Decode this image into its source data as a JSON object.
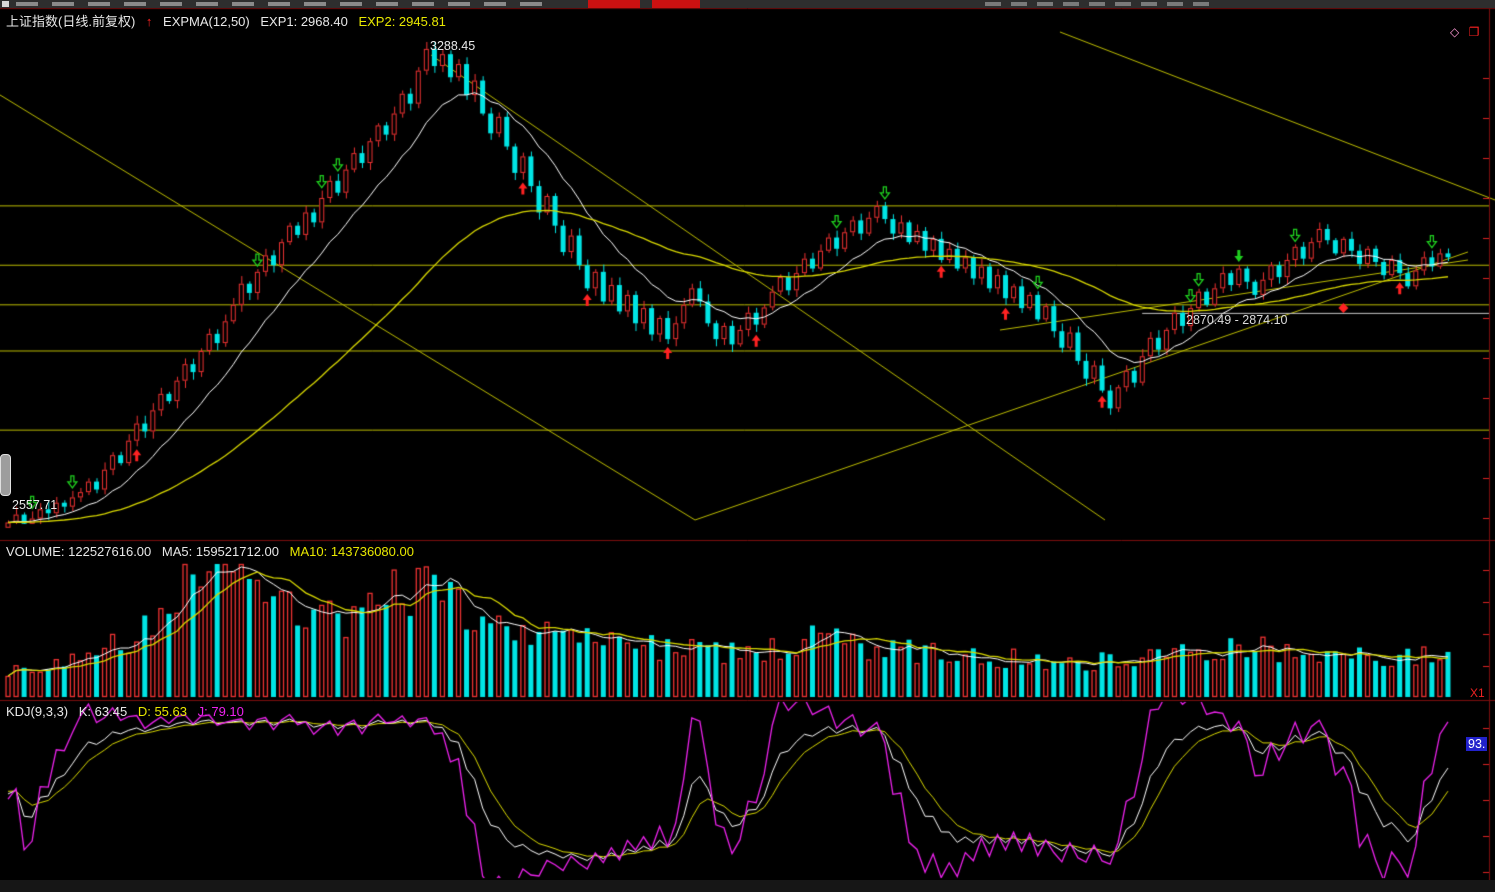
{
  "header": {
    "title": "上证指数(日线.前复权)",
    "indicator_arrow": "↑",
    "indicator": "EXPMA(12,50)",
    "exp1": "EXP1: 2968.40",
    "exp2": "EXP2: 2945.81",
    "corner_diamond": "◇",
    "corner_squares": "❐"
  },
  "labels": {
    "peak": "3288.45",
    "low": "2557.71",
    "range": "2870.49 - 2874.10"
  },
  "volume_panel": {
    "volume": "VOLUME: 122527616.00",
    "ma5": "MA5: 159521712.00",
    "ma10": "MA10: 143736080.00",
    "right_label": "X1"
  },
  "kdj_panel": {
    "title": "KDJ(9,3,3)",
    "k": "K: 63.45",
    "d": "D: 55.63",
    "j": "J: 79.10",
    "axis_badge": "93."
  },
  "colors": {
    "background": "#000000",
    "up": "#ee3232",
    "down": "#00e5e5",
    "ma_fast": "#ffffff",
    "ma_slow": "#d8d800",
    "trend": "#bdbd00",
    "border": "#7d0e0e",
    "tick": "#dd2222",
    "gray_line": "#c8c8c8",
    "arrow_buy": "#ff2222",
    "arrow_sell": "#1fcf1f",
    "badge_bg": "#2222cc",
    "panel_text": "#e8e8e8",
    "yellow_text": "#e8e800",
    "magenta_text": "#ee22ee"
  },
  "chart_data": [
    {
      "type": "candlestick",
      "symbol": "上证指数",
      "period": "日线.前复权",
      "indicator": "EXPMA",
      "ema_periods": [
        12,
        50
      ],
      "exp1": 2968.4,
      "exp2": 2945.81,
      "price_high": 3288.45,
      "price_low": 2557.71,
      "closes": [
        2560,
        2572,
        2558,
        2566,
        2580,
        2574,
        2590,
        2584,
        2598,
        2606,
        2622,
        2610,
        2640,
        2662,
        2650,
        2684,
        2710,
        2698,
        2730,
        2755,
        2744,
        2775,
        2800,
        2788,
        2820,
        2846,
        2832,
        2865,
        2890,
        2922,
        2908,
        2940,
        2965,
        2950,
        2985,
        3010,
        2996,
        3030,
        3015,
        3052,
        3078,
        3060,
        3095,
        3120,
        3105,
        3138,
        3162,
        3148,
        3180,
        3210,
        3195,
        3245,
        3278,
        3252,
        3270,
        3235,
        3255,
        3208,
        3230,
        3180,
        3150,
        3175,
        3130,
        3090,
        3115,
        3070,
        3030,
        3055,
        3010,
        2970,
        2995,
        2950,
        2915,
        2940,
        2895,
        2920,
        2880,
        2905,
        2862,
        2885,
        2845,
        2870,
        2838,
        2862,
        2890,
        2915,
        2895,
        2862,
        2838,
        2858,
        2830,
        2852,
        2878,
        2860,
        2886,
        2910,
        2932,
        2912,
        2938,
        2960,
        2945,
        2972,
        2992,
        2975,
        3000,
        3018,
        2998,
        3022,
        3040,
        3020,
        2998,
        3015,
        2985,
        3002,
        2972,
        2990,
        2958,
        2975,
        2945,
        2962,
        2930,
        2948,
        2915,
        2935,
        2900,
        2918,
        2885,
        2905,
        2868,
        2888,
        2850,
        2825,
        2848,
        2805,
        2778,
        2798,
        2760,
        2733,
        2765,
        2790,
        2772,
        2812,
        2840,
        2822,
        2852,
        2878,
        2858,
        2885,
        2910,
        2890,
        2915,
        2938,
        2920,
        2945,
        2925,
        2905,
        2928,
        2950,
        2932,
        2958,
        2978,
        2960,
        2985,
        3005,
        2988,
        2968,
        2990,
        2972,
        2952,
        2975,
        2955,
        2935,
        2958,
        2938,
        2918,
        2942,
        2962,
        2948,
        2968,
        2962
      ],
      "horizontal_lines": [
        3040,
        2950,
        2890,
        2820,
        2700
      ],
      "trendlines": [
        [
          0.0,
          0.1635,
          0.4649,
          0.9624
        ],
        [
          0.4649,
          0.9624,
          0.9819,
          0.4586
        ],
        [
          0.709,
          0.0451,
          1.0,
          0.3609
        ],
        [
          0.2883,
          0.0883,
          0.7391,
          0.9624
        ],
        [
          0.6689,
          0.6053,
          0.9819,
          0.4737
        ]
      ],
      "gray_line": {
        "price": 2877,
        "label": "2870.49 - 2874.10",
        "start_frac": 0.764
      },
      "signals": {
        "buy": [
          16,
          64,
          72,
          82,
          93,
          116,
          124,
          136,
          173
        ],
        "sell": [
          3,
          8,
          31,
          39,
          41,
          103,
          109,
          128,
          147,
          148,
          160,
          177
        ],
        "sell_solid": [
          153
        ],
        "diamond": [
          {
            "bar": 166,
            "price": 2885
          }
        ]
      }
    },
    {
      "type": "bar",
      "name": "VOLUME",
      "value": 122527616.0,
      "ma5": 159521712.0,
      "ma10": 143736080.0,
      "ma_periods": [
        5,
        10
      ],
      "envelope": [
        [
          0,
          0.2
        ],
        [
          10,
          0.28
        ],
        [
          18,
          0.55
        ],
        [
          22,
          0.9
        ],
        [
          28,
          1.0
        ],
        [
          33,
          0.85
        ],
        [
          38,
          0.62
        ],
        [
          44,
          0.55
        ],
        [
          47,
          0.78
        ],
        [
          52,
          0.82
        ],
        [
          58,
          0.6
        ],
        [
          64,
          0.5
        ],
        [
          74,
          0.42
        ],
        [
          82,
          0.38
        ],
        [
          90,
          0.33
        ],
        [
          96,
          0.36
        ],
        [
          101,
          0.44
        ],
        [
          108,
          0.36
        ],
        [
          116,
          0.33
        ],
        [
          124,
          0.3
        ],
        [
          132,
          0.26
        ],
        [
          140,
          0.3
        ],
        [
          147,
          0.35
        ],
        [
          153,
          0.4
        ],
        [
          160,
          0.34
        ],
        [
          168,
          0.3
        ],
        [
          174,
          0.33
        ],
        [
          179,
          0.28
        ]
      ]
    },
    {
      "type": "line",
      "name": "KDJ",
      "params": [
        9,
        3,
        3
      ],
      "k": 63.45,
      "d": 55.63,
      "j": 79.1,
      "range": [
        0,
        100
      ]
    }
  ]
}
